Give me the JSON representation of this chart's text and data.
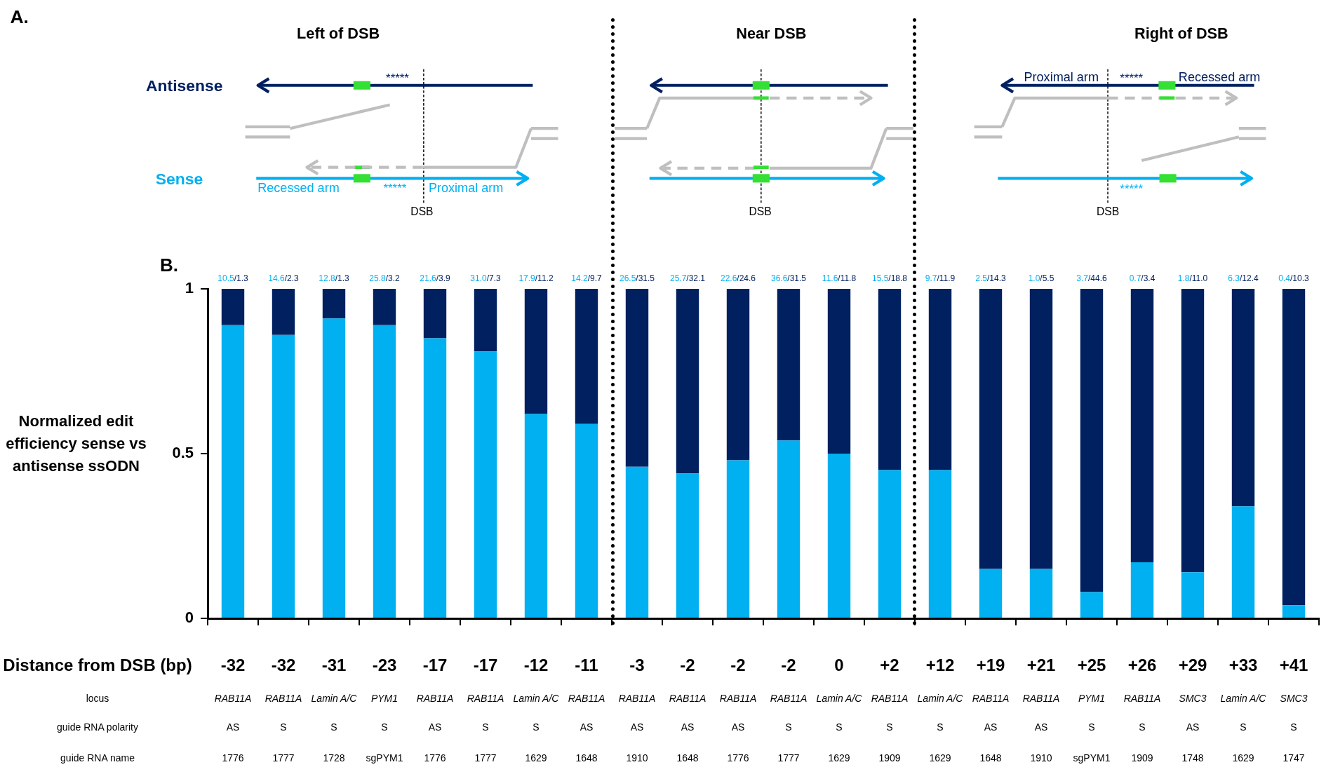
{
  "chart_data": [
    {
      "type": "other",
      "title": "A.",
      "annotations": [
        "Left of DSB",
        "Near DSB",
        "Right of DSB",
        "Antisense",
        "Sense",
        "*****",
        "Recessed arm",
        "*****",
        "Proximal arm",
        "DSB",
        "DSB",
        "Proximal arm",
        "*****",
        "Recessed arm",
        "*****",
        "DSB"
      ]
    },
    {
      "type": "bar",
      "title": "B.",
      "stacked": true,
      "ylabel": "Normalized edit efficiency sense vs antisense ssODN",
      "xlabel": "Distance from DSB (bp)",
      "categories": [
        "-32\nRAB11A\nAS\n1776",
        "-32\nRAB11A\nS\n1777",
        "-31\nLamin A/C\nS\n1728",
        "-23\nPYM1\nS\nsgPYM1",
        "-17\nRAB11A\nAS\n1776",
        "-17\nRAB11A\nS\n1777",
        "-12\nLamin A/C\nS\n1629",
        "-11\nRAB11A\nAS\n1648",
        "-3\nRAB11A\nAS\n1910",
        "-2\nRAB11A\nAS\n1648",
        "-2\nRAB11A\nAS\n1776",
        "-2\nRAB11A\nS\n1777",
        "0\nLamin A/C\nS\n1629",
        "+2\nRAB11A\nS\n1909",
        "+12\nLamin A/C\nS\n1629",
        "+19\nRAB11A\nAS\n1648",
        "+21\nRAB11A\nAS\n1910",
        "+25\nPYM1\nS\nsgPYM1",
        "+26\nRAB11A\nS\n1909",
        "+29\nSMC3\nAS\n1748",
        "+33\nLamin A/C\nS\n1629",
        "+41\nSMC3\nS\n1747"
      ],
      "series": [
        {
          "color": "#00b0f0",
          "values": [
            0.89,
            0.86,
            0.91,
            0.89,
            0.85,
            0.81,
            0.62,
            0.59,
            0.46,
            0.44,
            0.48,
            0.54,
            0.5,
            0.45,
            0.45,
            0.15,
            0.15,
            0.08,
            0.17,
            0.14,
            0.34,
            0.04
          ]
        },
        {
          "color": "#002060",
          "values": [
            0.11,
            0.14,
            0.09,
            0.11,
            0.15,
            0.19,
            0.38,
            0.41,
            0.54,
            0.56,
            0.52,
            0.46,
            0.5,
            0.55,
            0.55,
            0.85,
            0.85,
            0.92,
            0.83,
            0.86,
            0.66,
            0.96
          ]
        }
      ],
      "value_labels": [
        "10.5/1.3",
        "14.6/2.3",
        "12.8/1.3",
        "25.8/3.2",
        "21.6/3.9",
        "31.0/7.3",
        "17.9/11.2",
        "14.2/9.7",
        "26.5/31.5",
        "25.7/32.1",
        "22.6/24.6",
        "36.6/31.5",
        "11.6/11.8",
        "15.5/18.8",
        "9.7/11.9",
        "2.5/14.3",
        "1.0/5.5",
        "3.7/44.6",
        "0.7/3.4",
        "1.8/11.0",
        "6.3/12.4",
        "0.4/10.3"
      ],
      "ylim": [
        0,
        1
      ],
      "yticks": [
        0,
        0.5,
        1
      ],
      "grid": false,
      "legend": false,
      "annotations": [
        "locus",
        "guide RNA polarity",
        "guide RNA name"
      ]
    }
  ]
}
